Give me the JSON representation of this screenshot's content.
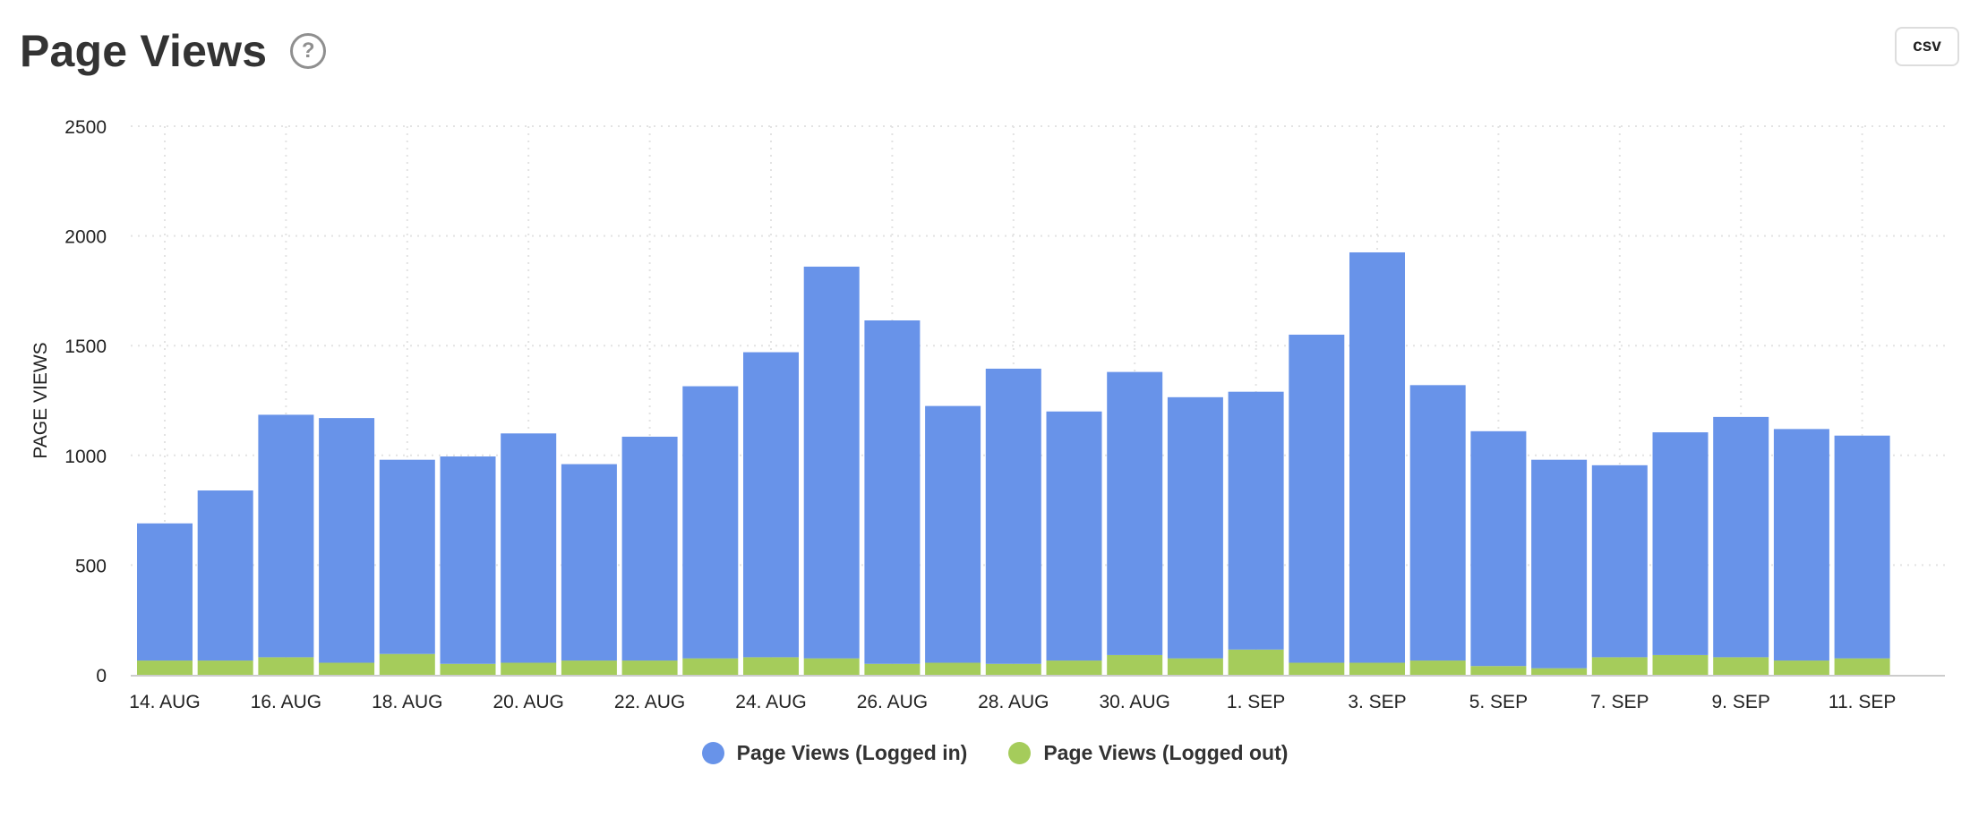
{
  "header": {
    "title": "Page Views",
    "help_glyph": "?",
    "help_icon": "question-circle-icon",
    "csv_label": "csv"
  },
  "chart_data": {
    "type": "bar",
    "stacked": true,
    "ylabel": "PAGE VIEWS",
    "xlabel": "",
    "ylim": [
      0,
      2500
    ],
    "yticks": [
      0,
      500,
      1000,
      1500,
      2000,
      2500
    ],
    "grid": true,
    "legend_position": "bottom",
    "categories": [
      "14. AUG",
      "15. AUG",
      "16. AUG",
      "17. AUG",
      "18. AUG",
      "19. AUG",
      "20. AUG",
      "21. AUG",
      "22. AUG",
      "23. AUG",
      "24. AUG",
      "25. AUG",
      "26. AUG",
      "27. AUG",
      "28. AUG",
      "29. AUG",
      "30. AUG",
      "31. AUG",
      "1. SEP",
      "2. SEP",
      "3. SEP",
      "4. SEP",
      "5. SEP",
      "6. SEP",
      "7. SEP",
      "8. SEP",
      "9. SEP",
      "10. SEP",
      "11. SEP"
    ],
    "xtick_labels": [
      "14. AUG",
      "16. AUG",
      "18. AUG",
      "20. AUG",
      "22. AUG",
      "24. AUG",
      "26. AUG",
      "28. AUG",
      "30. AUG",
      "1. SEP",
      "3. SEP",
      "5. SEP",
      "7. SEP",
      "9. SEP",
      "11. SEP"
    ],
    "series": [
      {
        "name": "Page Views (Logged out)",
        "color": "#a5cc5b",
        "values": [
          65,
          65,
          80,
          55,
          95,
          50,
          55,
          65,
          65,
          75,
          80,
          75,
          50,
          55,
          50,
          65,
          90,
          75,
          115,
          55,
          55,
          65,
          40,
          30,
          80,
          90,
          80,
          65,
          75
        ]
      },
      {
        "name": "Page Views (Logged in)",
        "color": "#6893e9",
        "values": [
          625,
          775,
          1105,
          1115,
          885,
          945,
          1045,
          895,
          1020,
          1240,
          1390,
          1785,
          1565,
          1170,
          1345,
          1135,
          1290,
          1190,
          1175,
          1495,
          1870,
          1255,
          1070,
          950,
          875,
          1015,
          1095,
          1055,
          1015
        ]
      }
    ]
  }
}
